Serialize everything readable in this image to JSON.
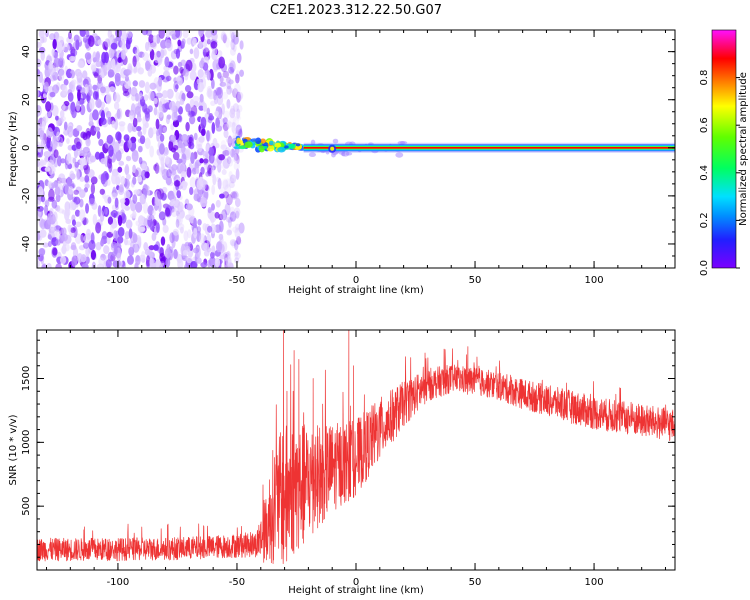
{
  "figure": {
    "title": "C2E1.2023.312.22.50.G07"
  },
  "chart_data": [
    {
      "type": "heatmap",
      "title": "",
      "xlabel": "Height of straight line (km)",
      "ylabel": "Frequency (Hz)",
      "xlim": [
        -134,
        134
      ],
      "ylim": [
        -50,
        49
      ],
      "xticks": [
        -100,
        -50,
        0,
        50,
        100
      ],
      "yticks": [
        -40,
        -20,
        0,
        20,
        40
      ],
      "colorbar": {
        "label": "Normalized spectral amplitude",
        "range": [
          0,
          1
        ],
        "ticks": [
          0.0,
          0.2,
          0.4,
          0.6,
          0.8
        ],
        "colormap": "rainbow (purple-blue-cyan-green-yellow-orange-red-pink)"
      },
      "features": [
        {
          "kind": "noise",
          "x_range": [
            -134,
            -50
          ],
          "y_range": [
            -50,
            49
          ],
          "amplitude": 0.1,
          "color": "#7b2cff"
        },
        {
          "kind": "tone",
          "x_range": [
            -50,
            -22
          ],
          "center_y": [
            2,
            0
          ],
          "amplitude": 0.6
        },
        {
          "kind": "tone",
          "x_range": [
            -22,
            134
          ],
          "center_y": 0,
          "amplitude": 1.0
        }
      ],
      "grid": false
    },
    {
      "type": "line",
      "title": "",
      "xlabel": "Height of straight line (km)",
      "ylabel": "SNR (10 * v/v)",
      "xlim": [
        -134,
        134
      ],
      "ylim": [
        0,
        1880
      ],
      "xticks": [
        -100,
        -50,
        0,
        50,
        100
      ],
      "yticks": [
        500,
        1000,
        1500
      ],
      "series_color": "#ee3333",
      "envelope": [
        {
          "x": -134,
          "mean": 160,
          "spread": 90
        },
        {
          "x": -110,
          "mean": 160,
          "spread": 90
        },
        {
          "x": -80,
          "mean": 165,
          "spread": 90
        },
        {
          "x": -60,
          "mean": 180,
          "spread": 90
        },
        {
          "x": -42,
          "mean": 200,
          "spread": 100
        },
        {
          "x": -38,
          "mean": 300,
          "spread": 250
        },
        {
          "x": -35,
          "mean": 500,
          "spread": 450
        },
        {
          "x": -30,
          "mean": 600,
          "spread": 550
        },
        {
          "x": -25,
          "mean": 650,
          "spread": 500
        },
        {
          "x": -20,
          "mean": 700,
          "spread": 450
        },
        {
          "x": -10,
          "mean": 800,
          "spread": 350
        },
        {
          "x": 0,
          "mean": 880,
          "spread": 300
        },
        {
          "x": 10,
          "mean": 1100,
          "spread": 250
        },
        {
          "x": 20,
          "mean": 1300,
          "spread": 180
        },
        {
          "x": 30,
          "mean": 1450,
          "spread": 130
        },
        {
          "x": 40,
          "mean": 1500,
          "spread": 110
        },
        {
          "x": 50,
          "mean": 1480,
          "spread": 110
        },
        {
          "x": 60,
          "mean": 1440,
          "spread": 110
        },
        {
          "x": 70,
          "mean": 1380,
          "spread": 120
        },
        {
          "x": 80,
          "mean": 1330,
          "spread": 120
        },
        {
          "x": 90,
          "mean": 1280,
          "spread": 130
        },
        {
          "x": 100,
          "mean": 1230,
          "spread": 130
        },
        {
          "x": 110,
          "mean": 1200,
          "spread": 130
        },
        {
          "x": 120,
          "mean": 1170,
          "spread": 130
        },
        {
          "x": 134,
          "mean": 1130,
          "spread": 130
        }
      ],
      "spikes": [
        {
          "x": -30.5,
          "y": 1880
        },
        {
          "x": -29,
          "y": 1400
        },
        {
          "x": -26,
          "y": 1720
        },
        {
          "x": -24,
          "y": 1650
        },
        {
          "x": -22,
          "y": 1200
        },
        {
          "x": -18,
          "y": 1500
        },
        {
          "x": -14,
          "y": 1300
        },
        {
          "x": -3,
          "y": 1880
        },
        {
          "x": -1,
          "y": 1600
        },
        {
          "x": 29,
          "y": 1700
        },
        {
          "x": 37,
          "y": 1730
        },
        {
          "x": 47,
          "y": 1750
        }
      ],
      "grid": false
    }
  ]
}
